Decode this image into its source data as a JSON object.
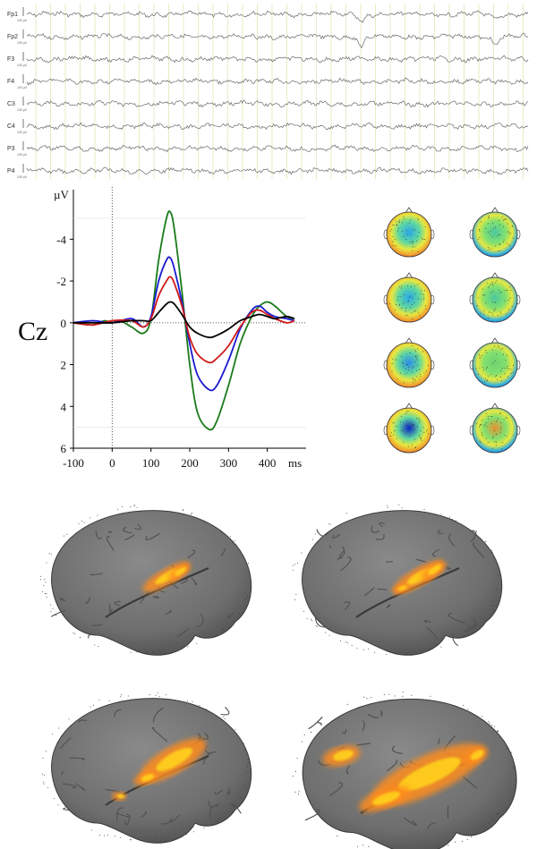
{
  "eeg": {
    "channels": [
      "Fp1",
      "Fp2",
      "F3",
      "F4",
      "C3",
      "C4",
      "P3",
      "P4"
    ],
    "scale_label": "100 µV",
    "trace_color": "#6a6a6a",
    "marker_color": "#e8e4b8"
  },
  "erp": {
    "electrode_label": "Cz",
    "y_unit": "µV",
    "x_unit": "ms",
    "chart_data": {
      "type": "line",
      "xlim": [
        -100,
        500
      ],
      "ylim": [
        6,
        -5.3
      ],
      "y_inverted": true,
      "x_ticks": [
        -100,
        0,
        100,
        200,
        300,
        400
      ],
      "y_ticks": [
        -4,
        -2,
        0,
        2,
        4,
        6
      ],
      "series": [
        {
          "color": "#1a7a1a",
          "x": [
            -100,
            -50,
            -20,
            0,
            20,
            50,
            80,
            100,
            120,
            140,
            150,
            160,
            180,
            200,
            220,
            250,
            270,
            300,
            330,
            360,
            380,
            400,
            420,
            450,
            470
          ],
          "y": [
            0,
            0.1,
            -0.1,
            0,
            -0.1,
            0.2,
            0.5,
            -0.2,
            -3,
            -5,
            -5.3,
            -4.5,
            -1.5,
            2,
            4.3,
            5.1,
            4.7,
            3,
            1,
            -0.3,
            -0.8,
            -1,
            -0.8,
            -0.3,
            -0.2
          ]
        },
        {
          "color": "#1a1ad0",
          "x": [
            -100,
            -50,
            0,
            50,
            80,
            100,
            120,
            140,
            150,
            160,
            180,
            200,
            220,
            250,
            270,
            300,
            330,
            360,
            380,
            400,
            420,
            450,
            470
          ],
          "y": [
            0,
            -0.1,
            0,
            -0.2,
            0.2,
            -0.3,
            -2,
            -3,
            -3.1,
            -2.6,
            -1,
            1,
            2.5,
            3.2,
            3,
            1.8,
            0.3,
            -0.6,
            -0.8,
            -0.5,
            -0.3,
            -0.2,
            -0.1
          ]
        },
        {
          "color": "#d01a1a",
          "x": [
            -100,
            -50,
            0,
            50,
            80,
            100,
            120,
            140,
            150,
            160,
            180,
            200,
            220,
            250,
            270,
            300,
            330,
            360,
            380,
            400,
            420,
            450,
            470
          ],
          "y": [
            0,
            0.1,
            -0.1,
            -0.1,
            0.2,
            -0.2,
            -1.3,
            -2,
            -2.2,
            -1.9,
            -0.8,
            0.7,
            1.5,
            1.9,
            1.7,
            1.1,
            0.2,
            -0.5,
            -0.6,
            -0.4,
            -0.2,
            0,
            -0.1
          ]
        },
        {
          "color": "#000000",
          "x": [
            -100,
            -50,
            0,
            50,
            80,
            100,
            120,
            140,
            150,
            160,
            180,
            200,
            220,
            250,
            270,
            300,
            330,
            360,
            380,
            400,
            420,
            450,
            470
          ],
          "y": [
            0,
            0,
            0,
            -0.1,
            -0.1,
            -0.1,
            -0.5,
            -0.9,
            -1,
            -0.9,
            -0.4,
            0.2,
            0.5,
            0.7,
            0.6,
            0.3,
            -0.1,
            -0.3,
            -0.4,
            -0.3,
            -0.2,
            -0.3,
            -0.2
          ]
        }
      ]
    }
  },
  "topomaps": {
    "rows": 4,
    "cols": 2,
    "centers": [
      [
        "#2aa8e8",
        "#4cc8a0"
      ],
      [
        "#2aa8e8",
        "#4cc8a0"
      ],
      [
        "#2a8ce8",
        "#70d070"
      ],
      [
        "#0a20c0",
        "#e89030"
      ]
    ],
    "edges": [
      [
        "#e83020",
        "#1a40d0"
      ],
      [
        "#e85020",
        "#2a60e0"
      ],
      [
        "#e84020",
        "#2a60e0"
      ],
      [
        "#d02010",
        "#1a40d0"
      ]
    ]
  },
  "brains": {
    "surface_color": "#777777",
    "activation_colors": [
      "#ff8c1a",
      "#ffd21a",
      "#f0e040"
    ]
  }
}
